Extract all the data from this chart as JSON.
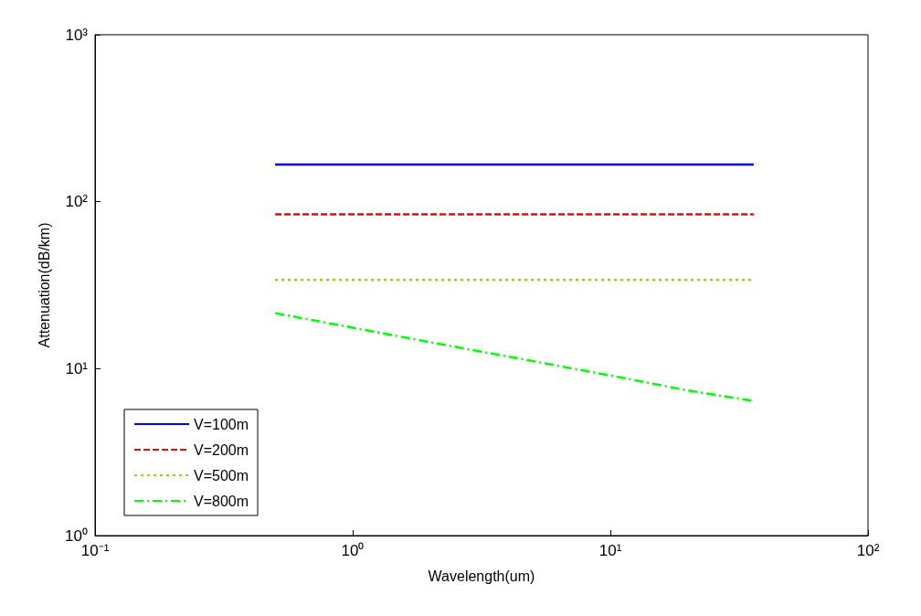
{
  "chart_data": {
    "type": "line",
    "xlabel": "Wavelength(um)",
    "ylabel": "Attenuation(dB/km)",
    "log": "xy",
    "grid": false,
    "legend": "bottom left",
    "marker": "none",
    "xlim": [
      0.1,
      100
    ],
    "xticks": [
      {
        "value": 0.1,
        "label": "10⁻¹"
      },
      {
        "value": 1,
        "label": "10⁰"
      },
      {
        "value": 10,
        "label": "10¹"
      },
      {
        "value": 100,
        "label": "10²"
      }
    ],
    "ylim": [
      1,
      1000
    ],
    "yticks": [
      {
        "value": 1,
        "label": "10⁰"
      },
      {
        "value": 10,
        "label": "10¹"
      },
      {
        "value": 100,
        "label": "10²"
      },
      {
        "value": 1000,
        "label": "10³"
      }
    ],
    "series": [
      {
        "name": "V=100m",
        "color": "#0000ff",
        "line_style": "solid",
        "x": [
          0.5,
          36
        ],
        "values": [
          167,
          167
        ]
      },
      {
        "name": "V=200m",
        "color": "#ff0000",
        "line_style": "dashed",
        "x": [
          0.5,
          36
        ],
        "values": [
          84,
          84
        ]
      },
      {
        "name": "V=500m",
        "color": "#bfbf00",
        "line_style": "dotted",
        "x": [
          0.5,
          36
        ],
        "values": [
          34,
          34
        ]
      },
      {
        "name": "V=800m",
        "color": "#00ff00",
        "line_style": "dashdot",
        "x": [
          0.5,
          1,
          2,
          5,
          10,
          20,
          36
        ],
        "values": [
          21.5,
          17.6,
          14.4,
          11.1,
          9.1,
          7.4,
          6.4
        ]
      }
    ]
  }
}
